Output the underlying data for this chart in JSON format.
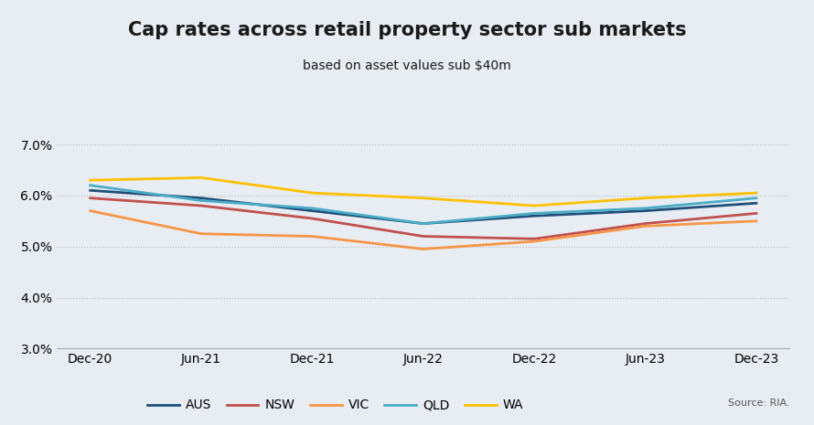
{
  "title": "Cap rates across retail property sector sub markets",
  "subtitle": "based on asset values sub $40m",
  "source": "Source: RIA.",
  "x_labels": [
    "Dec-20",
    "Jun-21",
    "Dec-21",
    "Jun-22",
    "Dec-22",
    "Jun-23",
    "Dec-23"
  ],
  "series": {
    "AUS": {
      "color": "#1f4e79",
      "values": [
        6.1,
        5.95,
        5.7,
        5.45,
        5.6,
        5.7,
        5.85
      ]
    },
    "NSW": {
      "color": "#c0504d",
      "values": [
        5.95,
        5.8,
        5.55,
        5.2,
        5.15,
        5.45,
        5.65
      ]
    },
    "VIC": {
      "color": "#f79646",
      "values": [
        5.7,
        5.25,
        5.2,
        4.95,
        5.1,
        5.4,
        5.5
      ]
    },
    "QLD": {
      "color": "#4bacc6",
      "values": [
        6.2,
        5.9,
        5.75,
        5.45,
        5.65,
        5.75,
        5.95
      ]
    },
    "WA": {
      "color": "#ffc000",
      "values": [
        6.3,
        6.35,
        6.05,
        5.95,
        5.8,
        5.95,
        6.05
      ]
    }
  },
  "ylim": [
    3.0,
    7.5
  ],
  "yticks": [
    3.0,
    4.0,
    5.0,
    6.0,
    7.0
  ],
  "ytick_labels": [
    "3.0%",
    "4.0%",
    "5.0%",
    "6.0%",
    "7.0%"
  ],
  "bg_color": "#e8edf4",
  "plot_bg_color": "#e8edf4",
  "grid_color": "#bbbbbb",
  "title_fontsize": 15,
  "subtitle_fontsize": 10,
  "legend_fontsize": 10,
  "axis_fontsize": 10
}
